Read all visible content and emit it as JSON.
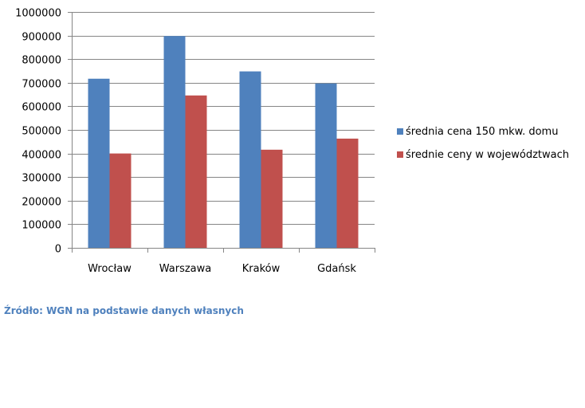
{
  "chart_data": {
    "type": "bar",
    "categories": [
      "Wrocław",
      "Warszawa",
      "Kraków",
      "Gdańsk"
    ],
    "series": [
      {
        "name": "średnia cena 150 mkw. domu",
        "values": [
          717000,
          898000,
          748000,
          697000
        ],
        "color": "#4f81bd"
      },
      {
        "name": "średnie ceny w województwach",
        "values": [
          400000,
          646000,
          416000,
          463000
        ],
        "color": "#c0504d"
      }
    ],
    "yticks": [
      "0",
      "100000",
      "200000",
      "300000",
      "400000",
      "500000",
      "600000",
      "700000",
      "800000",
      "900000",
      "1000000"
    ],
    "ylim": [
      0,
      1000000
    ],
    "grid": true,
    "legend_position": "right",
    "title": "",
    "xlabel": "",
    "ylabel": ""
  },
  "source_note": "Źródło: WGN na podstawie danych własnych"
}
